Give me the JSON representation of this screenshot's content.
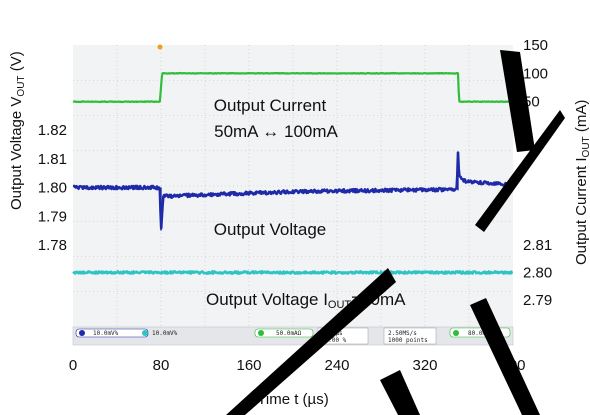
{
  "chart_data": [
    {
      "type": "line",
      "title": "",
      "xlabel": "Time t (µs)",
      "ylabel_left": "Output Voltage V_OUT (V)",
      "ylabel_right": "Output Current I_OUT (mA)",
      "x_ticks": [
        0,
        80,
        160,
        240,
        320,
        400
      ],
      "xlim": [
        0,
        400
      ],
      "grid": "dotted",
      "series": [
        {
          "name": "Output Current",
          "annotation": "Output Current 50mA ↔ 100mA",
          "color": "#2fbd3c",
          "axis": "right-top",
          "y_ticks": [
            0,
            50,
            100,
            150
          ],
          "x": [
            0,
            79,
            80,
            81,
            350,
            351,
            400
          ],
          "values": [
            50,
            50,
            75,
            100,
            100,
            50,
            50
          ]
        },
        {
          "name": "Output Voltage",
          "annotation": "Output Voltage",
          "color": "#1e2aa8",
          "axis": "left",
          "y_ticks": [
            1.78,
            1.79,
            1.8,
            1.81,
            1.82
          ],
          "x": [
            0,
            78,
            79,
            80,
            82,
            90,
            120,
            160,
            200,
            240,
            280,
            320,
            349,
            350,
            351,
            354,
            360,
            380,
            400
          ],
          "values": [
            1.8,
            1.8,
            1.799,
            1.785,
            1.797,
            1.797,
            1.7975,
            1.798,
            1.7985,
            1.7988,
            1.799,
            1.7992,
            1.7993,
            1.812,
            1.804,
            1.8025,
            1.802,
            1.8015,
            1.801
          ]
        },
        {
          "name": "Output Voltage I_OUT=30mA",
          "annotation": "Output Voltage I_OUT=30mA",
          "color": "#2ec4c4",
          "axis": "right-bottom",
          "y_ticks": [
            2.79,
            2.8,
            2.81
          ],
          "x": [
            0,
            400
          ],
          "values": [
            2.8,
            2.8
          ]
        }
      ]
    }
  ],
  "scope_status": {
    "ch1": "10.0mV%",
    "ch2": "10.0mV%",
    "ch3": "50.0mAΩ",
    "timebase": "40.0µs",
    "trigger_pos": "20.00 %",
    "sample": "2.50MS/s",
    "points": "1000 points",
    "trigger": "80.0mA"
  }
}
